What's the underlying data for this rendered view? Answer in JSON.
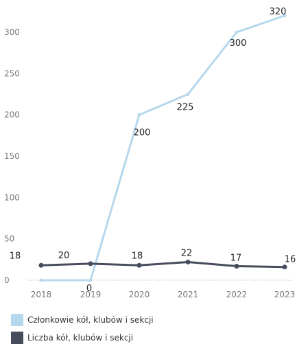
{
  "chart_data": {
    "type": "line",
    "x": [
      "2018",
      "2019",
      "2020",
      "2021",
      "2022",
      "2023"
    ],
    "series": [
      {
        "name": "Członkowie kół, klubów i sekcji",
        "values": [
          0,
          0,
          200,
          225,
          300,
          320
        ],
        "color": "#b7d7ec",
        "labels": [
          "",
          "0",
          "200",
          "225",
          "300",
          "320"
        ]
      },
      {
        "name": "Liczba kół, klubów i sekcji",
        "values": [
          18,
          20,
          18,
          22,
          17,
          16
        ],
        "color": "#474c5c",
        "labels": [
          "18",
          "20",
          "18",
          "22",
          "17",
          "16"
        ]
      }
    ],
    "yticks": [
      "0",
      "50",
      "100",
      "150",
      "200",
      "250",
      "300"
    ],
    "ylim": [
      0,
      330
    ],
    "grid": false,
    "legend_position": "bottom-left"
  }
}
